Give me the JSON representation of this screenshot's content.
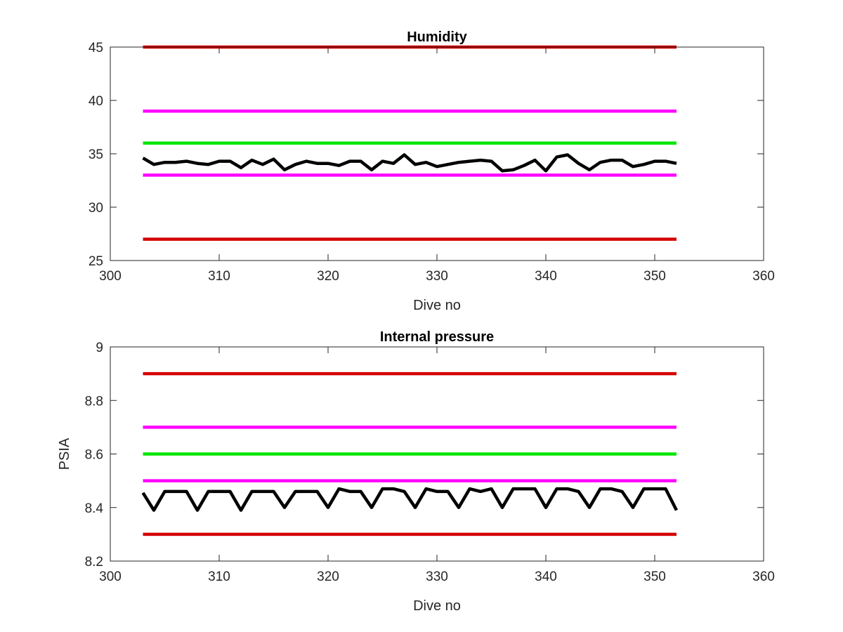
{
  "chart_data": [
    {
      "type": "line",
      "title": "Humidity",
      "xlabel": "Dive no",
      "ylabel": "",
      "xlim": [
        300,
        360
      ],
      "ylim": [
        25,
        45
      ],
      "xticks": [
        300,
        310,
        320,
        330,
        340,
        350,
        360
      ],
      "yticks": [
        25,
        30,
        35,
        40,
        45
      ],
      "grid": false,
      "series": [
        {
          "color": "#d40000",
          "x": [
            303,
            352
          ],
          "y": [
            45,
            45
          ]
        },
        {
          "color": "#ff00ff",
          "x": [
            303,
            352
          ],
          "y": [
            39,
            39
          ]
        },
        {
          "color": "#00e600",
          "x": [
            303,
            352
          ],
          "y": [
            36,
            36
          ]
        },
        {
          "color": "#ff00ff",
          "x": [
            303,
            352
          ],
          "y": [
            33,
            33
          ]
        },
        {
          "color": "#d40000",
          "x": [
            303,
            352
          ],
          "y": [
            27,
            27
          ]
        },
        {
          "color": "#000000",
          "x": [
            303,
            304,
            305,
            306,
            307,
            308,
            309,
            310,
            311,
            312,
            313,
            314,
            315,
            316,
            317,
            318,
            319,
            320,
            321,
            322,
            323,
            324,
            325,
            326,
            327,
            328,
            329,
            330,
            331,
            332,
            333,
            334,
            335,
            336,
            337,
            338,
            339,
            340,
            341,
            342,
            343,
            344,
            345,
            346,
            347,
            348,
            349,
            350,
            351,
            352
          ],
          "y": [
            34.6,
            34.0,
            34.2,
            34.2,
            34.3,
            34.1,
            34.0,
            34.3,
            34.3,
            33.7,
            34.4,
            34.0,
            34.5,
            33.5,
            34.0,
            34.3,
            34.1,
            34.1,
            33.9,
            34.3,
            34.3,
            33.5,
            34.3,
            34.1,
            34.9,
            34.0,
            34.2,
            33.8,
            34.0,
            34.2,
            34.3,
            34.4,
            34.3,
            33.4,
            33.5,
            33.9,
            34.4,
            33.4,
            34.7,
            34.9,
            34.1,
            33.5,
            34.2,
            34.4,
            34.4,
            33.8,
            34.0,
            34.3,
            34.3,
            34.1
          ]
        }
      ]
    },
    {
      "type": "line",
      "title": "Internal pressure",
      "xlabel": "Dive no",
      "ylabel": "PSIA",
      "xlim": [
        300,
        360
      ],
      "ylim": [
        8.2,
        9
      ],
      "xticks": [
        300,
        310,
        320,
        330,
        340,
        350,
        360
      ],
      "yticks": [
        8.2,
        8.4,
        8.6,
        8.8,
        9
      ],
      "grid": false,
      "series": [
        {
          "color": "#d40000",
          "x": [
            303,
            352
          ],
          "y": [
            8.9,
            8.9
          ]
        },
        {
          "color": "#ff00ff",
          "x": [
            303,
            352
          ],
          "y": [
            8.7,
            8.7
          ]
        },
        {
          "color": "#00e600",
          "x": [
            303,
            352
          ],
          "y": [
            8.6,
            8.6
          ]
        },
        {
          "color": "#ff00ff",
          "x": [
            303,
            352
          ],
          "y": [
            8.5,
            8.5
          ]
        },
        {
          "color": "#d40000",
          "x": [
            303,
            352
          ],
          "y": [
            8.3,
            8.3
          ]
        },
        {
          "color": "#000000",
          "x": [
            303,
            304,
            305,
            306,
            307,
            308,
            309,
            310,
            311,
            312,
            313,
            314,
            315,
            316,
            317,
            318,
            319,
            320,
            321,
            322,
            323,
            324,
            325,
            326,
            327,
            328,
            329,
            330,
            331,
            332,
            333,
            334,
            335,
            336,
            337,
            338,
            339,
            340,
            341,
            342,
            343,
            344,
            345,
            346,
            347,
            348,
            349,
            350,
            351,
            352
          ],
          "y": [
            8.455,
            8.39,
            8.46,
            8.46,
            8.46,
            8.39,
            8.46,
            8.46,
            8.46,
            8.39,
            8.46,
            8.46,
            8.46,
            8.4,
            8.46,
            8.46,
            8.46,
            8.4,
            8.47,
            8.46,
            8.46,
            8.4,
            8.47,
            8.47,
            8.46,
            8.4,
            8.47,
            8.46,
            8.46,
            8.4,
            8.47,
            8.46,
            8.47,
            8.4,
            8.47,
            8.47,
            8.47,
            8.4,
            8.47,
            8.47,
            8.46,
            8.4,
            8.47,
            8.47,
            8.46,
            8.4,
            8.47,
            8.47,
            8.47,
            8.39
          ]
        }
      ]
    }
  ]
}
